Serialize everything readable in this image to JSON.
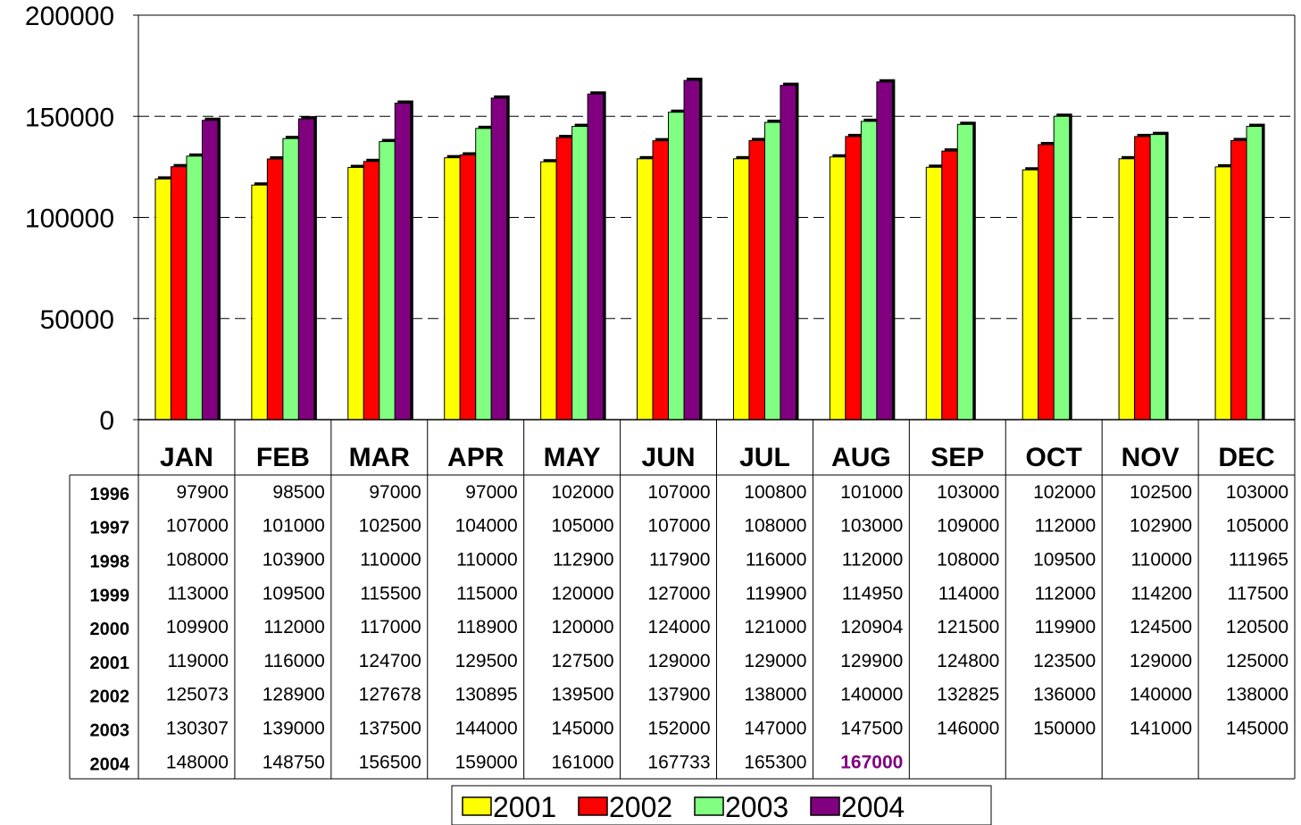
{
  "chart_data": {
    "type": "bar",
    "categories": [
      "JAN",
      "FEB",
      "MAR",
      "APR",
      "MAY",
      "JUN",
      "JUL",
      "AUG",
      "SEP",
      "OCT",
      "NOV",
      "DEC"
    ],
    "ylim": [
      0,
      200000
    ],
    "yticks": [
      "0",
      "50000",
      "100000",
      "150000",
      "200000"
    ],
    "grid": "horizontal dashed",
    "legend_position": "bottom",
    "series": [
      {
        "name": "2001",
        "color": "#ffff00",
        "values": [
          119000,
          116000,
          124700,
          129500,
          127500,
          129000,
          129000,
          129900,
          124800,
          123500,
          129000,
          125000
        ]
      },
      {
        "name": "2002",
        "color": "#ff0000",
        "values": [
          125073,
          128900,
          127678,
          130895,
          139500,
          137900,
          138000,
          140000,
          132825,
          136000,
          140000,
          138000
        ]
      },
      {
        "name": "2003",
        "color": "#80ff80",
        "values": [
          130307,
          139000,
          137500,
          144000,
          145000,
          152000,
          147000,
          147500,
          146000,
          150000,
          141000,
          145000
        ]
      },
      {
        "name": "2004",
        "color": "#800080",
        "values": [
          148000,
          148750,
          156500,
          159000,
          161000,
          167733,
          165300,
          167000,
          null,
          null,
          null,
          null
        ]
      }
    ],
    "table": {
      "rows": [
        {
          "year": "1996",
          "values": [
            "97900",
            "98500",
            "97000",
            "97000",
            "102000",
            "107000",
            "100800",
            "101000",
            "103000",
            "102000",
            "102500",
            "103000"
          ]
        },
        {
          "year": "1997",
          "values": [
            "107000",
            "101000",
            "102500",
            "104000",
            "105000",
            "107000",
            "108000",
            "103000",
            "109000",
            "112000",
            "102900",
            "105000"
          ]
        },
        {
          "year": "1998",
          "values": [
            "108000",
            "103900",
            "110000",
            "110000",
            "112900",
            "117900",
            "116000",
            "112000",
            "108000",
            "109500",
            "110000",
            "111965"
          ]
        },
        {
          "year": "1999",
          "values": [
            "113000",
            "109500",
            "115500",
            "115000",
            "120000",
            "127000",
            "119900",
            "114950",
            "114000",
            "112000",
            "114200",
            "117500"
          ]
        },
        {
          "year": "2000",
          "values": [
            "109900",
            "112000",
            "117000",
            "118900",
            "120000",
            "124000",
            "121000",
            "120904",
            "121500",
            "119900",
            "124500",
            "120500"
          ]
        },
        {
          "year": "2001",
          "values": [
            "119000",
            "116000",
            "124700",
            "129500",
            "127500",
            "129000",
            "129000",
            "129900",
            "124800",
            "123500",
            "129000",
            "125000"
          ]
        },
        {
          "year": "2002",
          "values": [
            "125073",
            "128900",
            "127678",
            "130895",
            "139500",
            "137900",
            "138000",
            "140000",
            "132825",
            "136000",
            "140000",
            "138000"
          ]
        },
        {
          "year": "2003",
          "values": [
            "130307",
            "139000",
            "137500",
            "144000",
            "145000",
            "152000",
            "147000",
            "147500",
            "146000",
            "150000",
            "141000",
            "145000"
          ]
        },
        {
          "year": "2004",
          "values": [
            "148000",
            "148750",
            "156500",
            "159000",
            "161000",
            "167733",
            "165300",
            "167000",
            "",
            "",
            "",
            ""
          ]
        }
      ],
      "highlight": {
        "row": 8,
        "col": 7,
        "color": "#800080"
      }
    }
  }
}
